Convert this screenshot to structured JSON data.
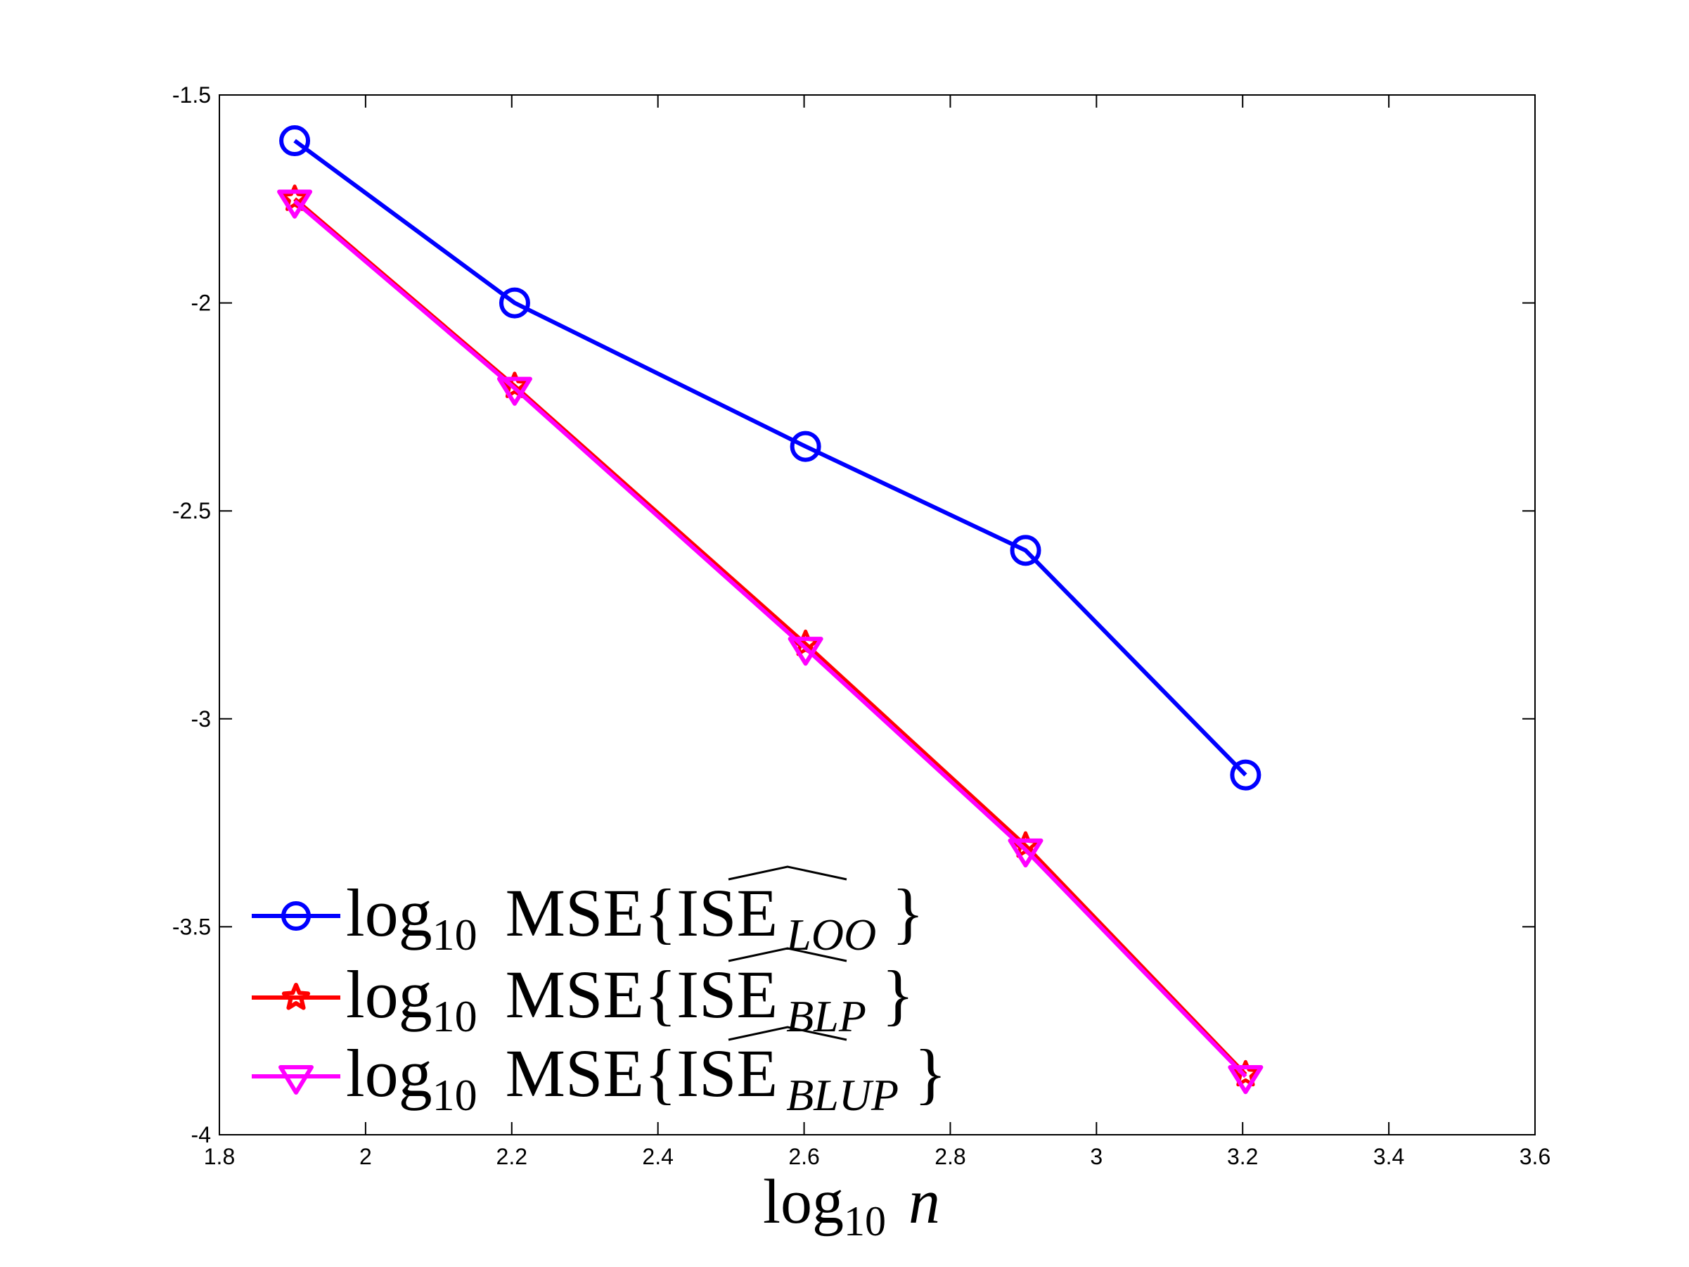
{
  "chart_data": {
    "type": "line",
    "title": "",
    "xlabel": {
      "prefix": "log",
      "sub": "10",
      "var": "n"
    },
    "ylabel": "",
    "xlim": [
      1.8,
      3.6
    ],
    "ylim": [
      -4,
      -1.5
    ],
    "xticks": [
      1.8,
      2,
      2.2,
      2.4,
      2.6,
      2.8,
      3,
      3.2,
      3.4,
      3.6
    ],
    "xtick_labels": [
      "1.8",
      "2",
      "2.2",
      "2.4",
      "2.6",
      "2.8",
      "3",
      "3.2",
      "3.4",
      "3.6"
    ],
    "yticks": [
      -1.5,
      -2,
      -2.5,
      -3,
      -3.5,
      -4
    ],
    "ytick_labels": [
      "-1.5",
      "-2",
      "-2.5",
      "-3",
      "-3.5",
      "-4"
    ],
    "grid": false,
    "legend_position": "bottom-left",
    "x": [
      1.903,
      2.204,
      2.602,
      2.903,
      3.204
    ],
    "series": [
      {
        "name": "LOO",
        "legend": {
          "prefix": "log",
          "sub": "10",
          "mse": "MSE{",
          "ise": "ISE",
          "estimator": "LOO",
          "close": "}"
        },
        "color": "#0000ff",
        "marker": "circle",
        "values": [
          -1.61,
          -2.0,
          -2.345,
          -2.595,
          -3.135
        ]
      },
      {
        "name": "BLP",
        "legend": {
          "prefix": "log",
          "sub": "10",
          "mse": "MSE{",
          "ise": "ISE",
          "estimator": "BLP",
          "close": "}"
        },
        "color": "#ff0000",
        "marker": "star",
        "values": [
          -1.75,
          -2.2,
          -2.82,
          -3.305,
          -3.855
        ]
      },
      {
        "name": "BLUP",
        "legend": {
          "prefix": "log",
          "sub": "10",
          "mse": "MSE{",
          "ise": "ISE",
          "estimator": "BLUP",
          "close": "}"
        },
        "color": "#ff00ff",
        "marker": "triangle-down",
        "values": [
          -1.755,
          -2.205,
          -2.83,
          -3.315,
          -3.86
        ]
      }
    ]
  }
}
